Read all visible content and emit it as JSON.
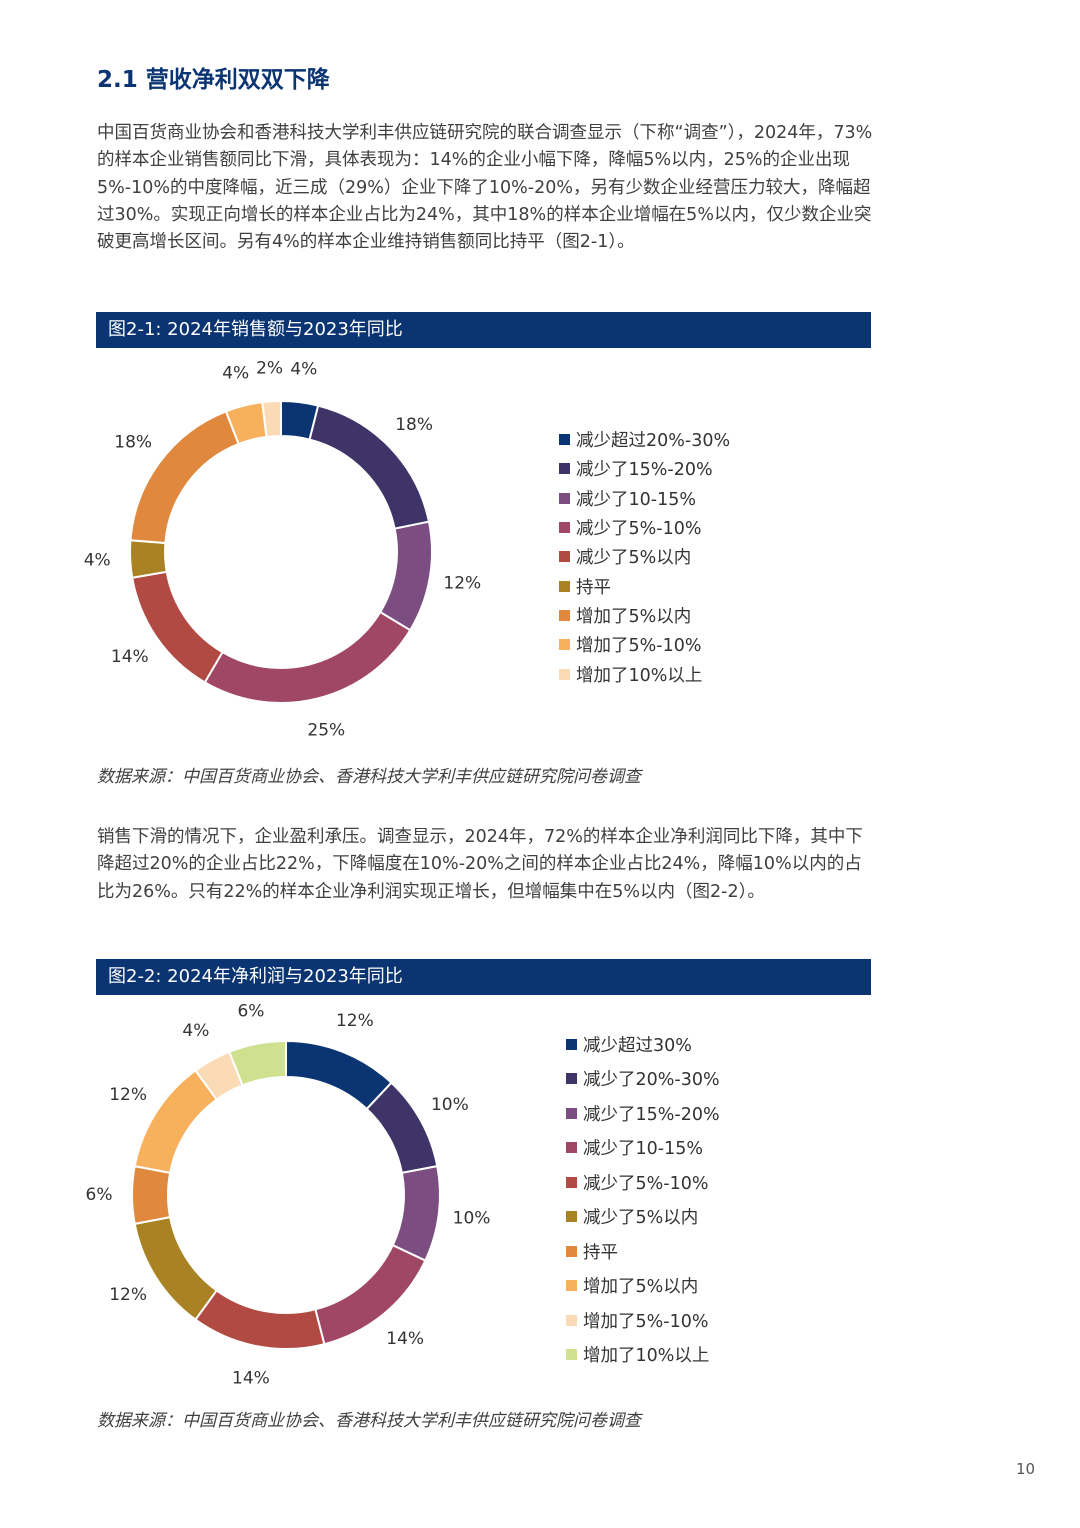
{
  "heading": "2.1 营收净利双双下降",
  "para1": "中国百货商业协会和香港科技大学利丰供应链研究院的联合调查显示（下称“调查”），2024年，73%的样本企业销售额同比下滑，具体表现为：14%的企业小幅下降，降幅5%以内，25%的企业出现5%-10%的中度降幅，近三成（29%）企业下降了10%-20%，另有少数企业经营压力较大，降幅超过30%。实现正向增长的样本企业占比为24%，其中18%的样本企业增幅在5%以内，仅少数企业突破更高增长区间。另有4%的样本企业维持销售额同比持平（图2-1）。",
  "para2": "销售下滑的情况下，企业盈利承压。调查显示，2024年，72%的样本企业净利润同比下降，其中下降超过20%的企业占比22%，下降幅度在10%-20%之间的样本企业占比24%，降幅10%以内的占比为26%。只有22%的样本企业净利润实现正增长，但增幅集中在5%以内（图2-2）。",
  "fig1_title": "图2-1: 2024年销售额与2023年同比",
  "fig2_title": "图2-2: 2024年净利润与2023年同比",
  "source1": "数据来源：中国百货商业协会、香港科技大学利丰供应链研究院问卷调查",
  "source2": "数据来源：中国百货商业协会、香港科技大学利丰供应链研究院问卷调查",
  "page_number": "10",
  "chart_data": [
    {
      "type": "pie",
      "title": "图2-1: 2024年销售额与2023年同比",
      "donut": true,
      "labels": [
        "减少超过20%-30%",
        "减少了15%-20%",
        "减少了10-15%",
        "减少了5%-10%",
        "减少了5%以内",
        "持平",
        "增加了5%以内",
        "增加了5%-10%",
        "增加了10%以上"
      ],
      "values": [
        4,
        18,
        12,
        25,
        14,
        4,
        18,
        4,
        2
      ],
      "value_labels": [
        "4%",
        "18%",
        "12%",
        "25%",
        "14%",
        "4%",
        "18%",
        "4%",
        "2%"
      ],
      "colors": [
        "#0b3472",
        "#3f3468",
        "#7c4d81",
        "#a04765",
        "#b24a44",
        "#a88223",
        "#e0893e",
        "#f7b15d",
        "#fbdab6"
      ],
      "legend_position": "right"
    },
    {
      "type": "pie",
      "title": "图2-2: 2024年净利润与2023年同比",
      "donut": true,
      "labels": [
        "减少超过30%",
        "减少了20%-30%",
        "减少了15%-20%",
        "减少了10-15%",
        "减少了5%-10%",
        "减少了5%以内",
        "持平",
        "增加了5%以内",
        "增加了5%-10%",
        "增加了10%以上"
      ],
      "values": [
        12,
        10,
        10,
        14,
        14,
        12,
        6,
        12,
        4,
        6
      ],
      "value_labels": [
        "12%",
        "10%",
        "10%",
        "14%",
        "14%",
        "12%",
        "6%",
        "12%",
        "4%",
        "6%"
      ],
      "colors": [
        "#0b3472",
        "#3f3468",
        "#7c4d81",
        "#a04765",
        "#b24a44",
        "#a88223",
        "#e0893e",
        "#f7b15d",
        "#fbdab6",
        "#cfe08f"
      ],
      "legend_position": "right"
    }
  ]
}
